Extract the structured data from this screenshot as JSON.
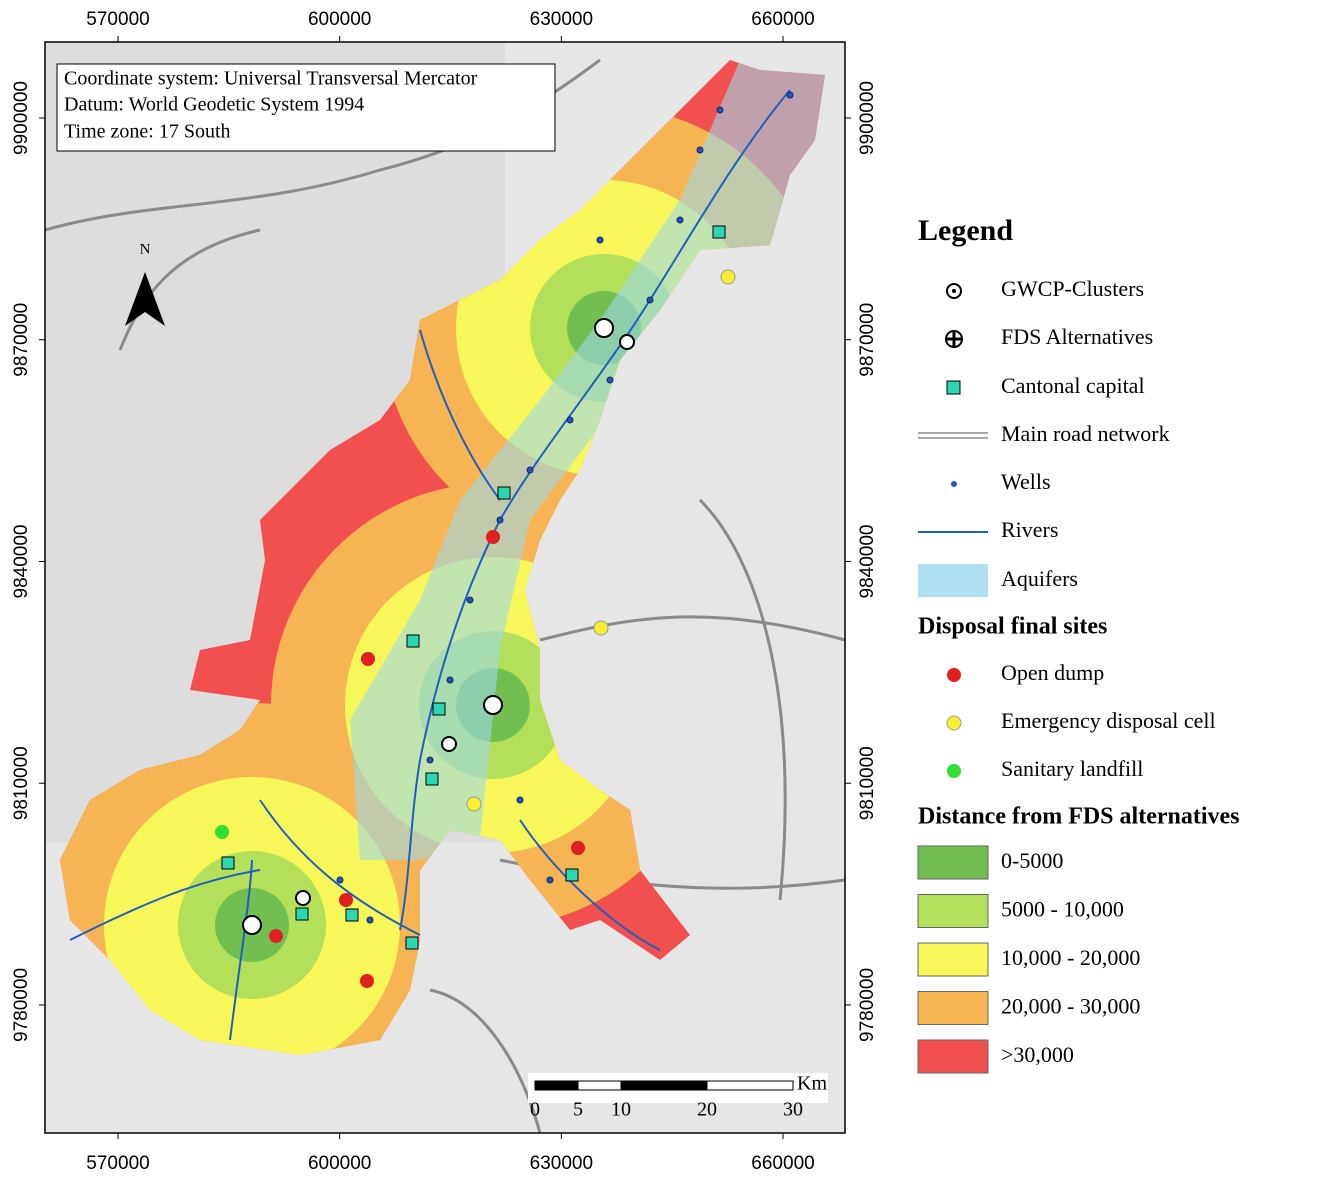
{
  "info_box": [
    "Coordinate system: Universal Transversal Mercator",
    "Datum: World Geodetic System 1994",
    "Time zone: 17 South"
  ],
  "north_label": "N",
  "map": {
    "xlim": [
      560120,
      668390
    ],
    "ylim": [
      9762680,
      9910280
    ],
    "xticks": [
      570000,
      600000,
      630000,
      660000
    ],
    "yticks": [
      9780000,
      9810000,
      9840000,
      9870000,
      9900000
    ]
  },
  "scale_bar": {
    "unit": "Km",
    "ticks": [
      0,
      5,
      10,
      20,
      30
    ]
  },
  "legend": {
    "title": "Legend",
    "items": [
      "GWCP-Clusters",
      "FDS Alternatives",
      "Cantonal capital",
      "Main road network",
      "Wells",
      "Rivers",
      "Aquifers"
    ],
    "disposal_title": "Disposal final sites",
    "disposal_items": [
      "Open dump",
      "Emergency disposal cell",
      "Sanitary landfill"
    ],
    "distance_title": "Distance from FDS alternatives",
    "distance_items": [
      {
        "label": "0-5000",
        "color": "#70bf50"
      },
      {
        "label": "5000 - 10,000",
        "color": "#b3df5a"
      },
      {
        "label": "10,000 - 20,000",
        "color": "#f7f75a"
      },
      {
        "label": "20,000 - 30,000",
        "color": "#f7b452"
      },
      {
        "label": ">30,000",
        "color": "#f24f4f"
      }
    ]
  }
}
